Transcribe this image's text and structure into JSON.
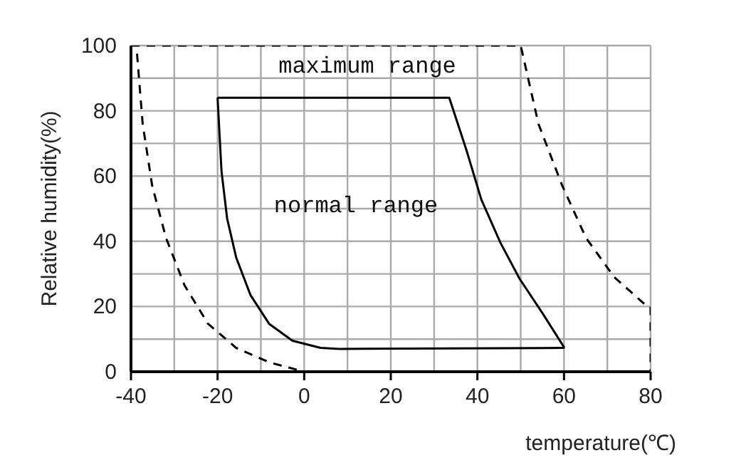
{
  "chart_data": {
    "type": "line",
    "xlabel": "temperature(℃)",
    "ylabel": "Relative humidity(%)",
    "xlim": [
      -40,
      80
    ],
    "ylim": [
      0,
      100
    ],
    "xticks": [
      -40,
      {
        "value": -30,
        "label": null
      },
      -20,
      {
        "value": -10,
        "label": null
      },
      0,
      {
        "value": 10,
        "label": null
      },
      20,
      {
        "value": 30,
        "label": null
      },
      40,
      {
        "value": 50,
        "label": null
      },
      60,
      {
        "value": 70,
        "label": null
      },
      80
    ],
    "yticks": [
      0,
      {
        "value": 10,
        "label": null
      },
      20,
      {
        "value": 30,
        "label": null
      },
      40,
      {
        "value": 50,
        "label": null
      },
      60,
      {
        "value": 70,
        "label": null
      },
      80,
      {
        "value": 90,
        "label": null
      },
      100
    ],
    "grid": true,
    "legend": false,
    "marker": "none",
    "series": [
      {
        "color": "#000000",
        "line_style": "dashed",
        "x": [
          -38.6,
          -37.3,
          -35.1,
          -31.9,
          -27.6,
          -22.2,
          -15.7,
          -8.1,
          0,
          80
        ],
        "values": [
          97.5,
          76,
          57,
          41,
          26.4,
          14.7,
          7.3,
          2.9,
          0,
          0
        ]
      },
      {
        "color": "#000000",
        "line_style": "dashed",
        "x": [
          -40,
          50,
          54.1,
          59.6,
          65.1,
          71.6,
          78.8,
          80,
          80
        ],
        "values": [
          100,
          100,
          76,
          57,
          41,
          29,
          20.5,
          20,
          0
        ]
      },
      {
        "color": "#000000",
        "line_style": "solid",
        "x": [
          -20,
          -19.1,
          -17.8,
          -15.7,
          -12.4,
          -8.1,
          -2.7,
          3.8,
          8.1,
          60.1
        ],
        "values": [
          84,
          61.6,
          47,
          35,
          23.5,
          14.7,
          9.5,
          7.3,
          7,
          7.3
        ]
      },
      {
        "color": "#000000",
        "line_style": "solid",
        "x": [
          -20,
          33.5,
          37.6,
          40.9,
          45.3,
          49.7,
          55.2,
          60.1
        ],
        "values": [
          84,
          84,
          67.4,
          52.8,
          39.6,
          28.6,
          17.6,
          7.3
        ]
      }
    ],
    "annotations": [
      "maximum range",
      "normal range"
    ]
  }
}
